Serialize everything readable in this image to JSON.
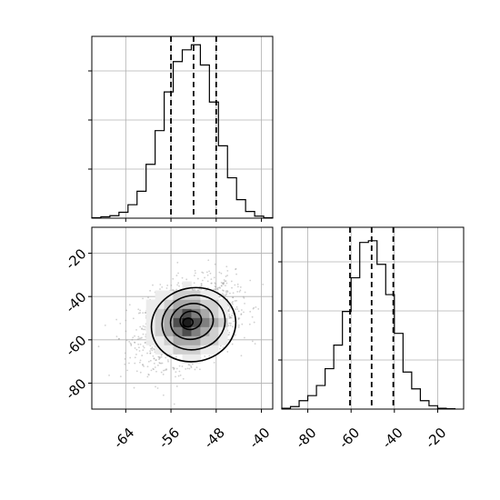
{
  "chart_data": {
    "type": "corner",
    "parameters": [
      "",
      ""
    ],
    "grid": true,
    "panels": [
      {
        "name": "marginal-param1",
        "type": "histogram",
        "xlim": [
          -70,
          -38
        ],
        "bin_edges": [
          -70,
          -68.4,
          -66.8,
          -65.2,
          -63.6,
          -62,
          -60.4,
          -58.8,
          -57.2,
          -55.6,
          -54,
          -52.4,
          -50.8,
          -49.2,
          -47.6,
          -46,
          -44.4,
          -42.8,
          -41.2,
          -39.6,
          -38
        ],
        "counts": [
          0.3,
          0.8,
          1.5,
          3.5,
          8,
          16,
          32,
          52,
          75,
          93,
          100,
          103,
          91,
          69,
          43,
          24,
          11,
          4,
          1.2,
          0.3
        ],
        "ylim": [
          0,
          108
        ],
        "quantiles": [
          -56.0,
          -52.0,
          -48.0
        ]
      },
      {
        "name": "joint-param1-param2",
        "type": "2d-hist-contour",
        "xlim": [
          -70,
          -38
        ],
        "ylim": [
          -92,
          -8
        ],
        "xticks": [
          "-64",
          "-56",
          "-48",
          "-40"
        ],
        "xtick_values": [
          -64,
          -56,
          -48,
          -40
        ],
        "yticks": [
          "-20",
          "-40",
          "-60",
          "-80"
        ],
        "ytick_values": [
          -20,
          -40,
          -60,
          -80
        ],
        "peak": [
          -53,
          -52
        ],
        "contour_levels": [
          {
            "level": "outer",
            "center": [
              -52,
              -53
            ],
            "rx": 7.5,
            "ry": 17
          },
          {
            "level": "2",
            "center": [
              -52,
              -52
            ],
            "rx": 5.6,
            "ry": 12.5
          },
          {
            "level": "3",
            "center": [
              -52.3,
              -51.5
            ],
            "rx": 3.8,
            "ry": 8.2
          },
          {
            "level": "4",
            "center": [
              -52.5,
              -51
            ],
            "rx": 1.9,
            "ry": 4.2
          },
          {
            "level": "inner",
            "center": [
              -53,
              -52
            ],
            "rx": 0.9,
            "ry": 2
          }
        ]
      },
      {
        "name": "marginal-param2",
        "type": "histogram",
        "xlim": [
          -92,
          -8
        ],
        "xticks": [
          "-80",
          "-60",
          "-40",
          "-20"
        ],
        "xtick_values": [
          -80,
          -60,
          -40,
          -20
        ],
        "bin_edges": [
          -92,
          -88,
          -84,
          -80,
          -76,
          -72,
          -68,
          -64,
          -60,
          -56,
          -52,
          -48,
          -44,
          -40,
          -36,
          -32,
          -28,
          -24,
          -20,
          -16,
          -12
        ],
        "counts": [
          0.5,
          1.5,
          5,
          8,
          14,
          24,
          38,
          58,
          78,
          99,
          100,
          86,
          68,
          45,
          22,
          12,
          5,
          2,
          0.5,
          0.2
        ],
        "ylim": [
          0,
          108
        ],
        "quantiles": [
          -60.5,
          -50.5,
          -40.5
        ]
      }
    ]
  }
}
